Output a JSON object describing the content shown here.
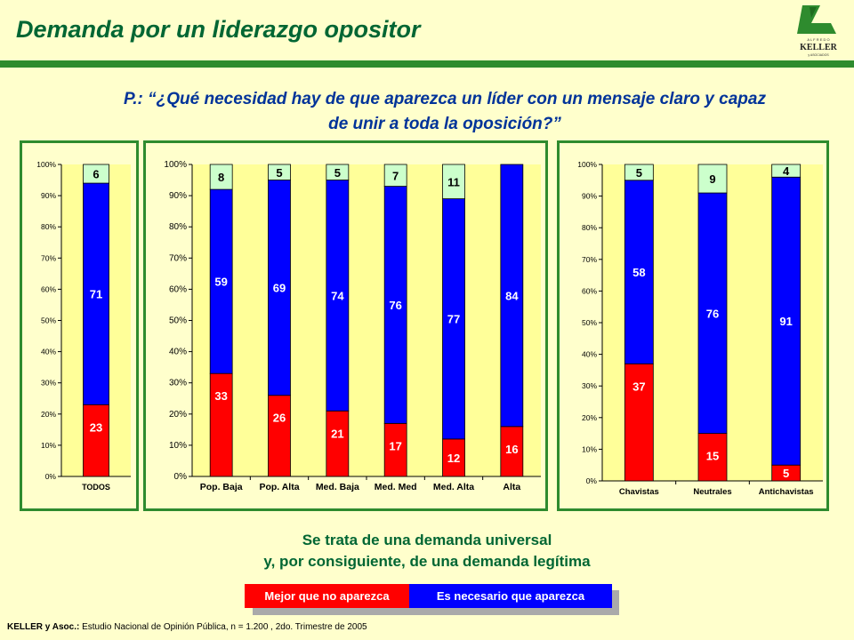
{
  "header": {
    "title": "Demanda por un liderazgo opositor",
    "logo": {
      "top_text": "A L F R E D O",
      "name": "KELLER",
      "sub": "y ASOCIADOS"
    }
  },
  "question": {
    "line1": "P.: “¿Qué necesidad hay de que aparezca un líder con un mensaje claro y capaz",
    "line2": "de unir a toda la oposición?”"
  },
  "colors": {
    "red": "#FF0000",
    "blue": "#0000FF",
    "light_green": "#CCFFCC",
    "plot_bg": "#FFFF99",
    "border": "#2E8B2E"
  },
  "chart_data": [
    {
      "type": "bar",
      "stacked": true,
      "categories": [
        "TODOS"
      ],
      "series": [
        {
          "name": "Mejor que no aparezca",
          "values": [
            23
          ]
        },
        {
          "name": "Es necesario que aparezca",
          "values": [
            71
          ]
        },
        {
          "name": "",
          "values": [
            6
          ]
        }
      ],
      "ylim": [
        0,
        100
      ],
      "yticks": [
        "0%",
        "10%",
        "20%",
        "30%",
        "40%",
        "50%",
        "60%",
        "70%",
        "80%",
        "90%",
        "100%"
      ]
    },
    {
      "type": "bar",
      "stacked": true,
      "categories": [
        "Pop. Baja",
        "Pop. Alta",
        "Med. Baja",
        "Med. Med",
        "Med. Alta",
        "Alta"
      ],
      "series": [
        {
          "name": "Mejor que no aparezca",
          "values": [
            33,
            26,
            21,
            17,
            12,
            16
          ]
        },
        {
          "name": "Es necesario que aparezca",
          "values": [
            59,
            69,
            74,
            76,
            77,
            84
          ]
        },
        {
          "name": "",
          "values": [
            8,
            5,
            5,
            7,
            11,
            0
          ]
        }
      ],
      "ylim": [
        0,
        100
      ],
      "yticks": [
        "0%",
        "10%",
        "20%",
        "30%",
        "40%",
        "50%",
        "60%",
        "70%",
        "80%",
        "90%",
        "100%"
      ]
    },
    {
      "type": "bar",
      "stacked": true,
      "categories": [
        "Chavistas",
        "Neutrales",
        "Antichavistas"
      ],
      "series": [
        {
          "name": "Mejor que no aparezca",
          "values": [
            37,
            15,
            5
          ]
        },
        {
          "name": "Es necesario que aparezca",
          "values": [
            58,
            76,
            91
          ]
        },
        {
          "name": "",
          "values": [
            5,
            9,
            4
          ]
        }
      ],
      "ylim": [
        0,
        100
      ],
      "yticks": [
        "0%",
        "10%",
        "20%",
        "30%",
        "40%",
        "50%",
        "60%",
        "70%",
        "80%",
        "90%",
        "100%"
      ]
    }
  ],
  "conclusion": {
    "line1": "Se trata de una demanda universal",
    "line2": "y, por consiguiente, de una demanda legítima"
  },
  "legend": {
    "red_label": "Mejor que no aparezca",
    "blue_label": "Es necesario que aparezca"
  },
  "footer": {
    "bold": "KELLER y Asoc.:",
    "text": " Estudio Nacional de Opinión Pública, n = 1.200 , 2do. Trimestre de 2005"
  }
}
